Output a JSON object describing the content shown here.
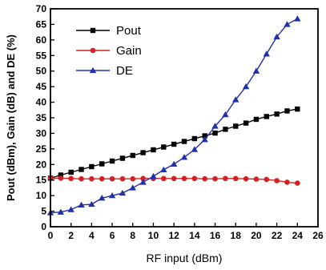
{
  "chart_data": {
    "type": "line",
    "title": "",
    "xlabel": "RF input (dBm)",
    "ylabel": "Pout (dBm), Gain (dB) and DE (%)",
    "xlim": [
      0,
      26
    ],
    "ylim": [
      0,
      70
    ],
    "x_ticks": [
      0,
      2,
      4,
      6,
      8,
      10,
      12,
      14,
      16,
      18,
      20,
      22,
      24,
      26
    ],
    "y_ticks": [
      0,
      5,
      10,
      15,
      20,
      25,
      30,
      35,
      40,
      45,
      50,
      55,
      60,
      65,
      70
    ],
    "grid": false,
    "legend_position": "top-left",
    "x": [
      0,
      1,
      2,
      3,
      4,
      5,
      6,
      7,
      8,
      9,
      10,
      11,
      12,
      13,
      14,
      15,
      16,
      17,
      18,
      19,
      20,
      21,
      22,
      23,
      24
    ],
    "series": [
      {
        "name": "Pout",
        "color": "#000000",
        "marker": "square",
        "values": [
          15.6,
          16.6,
          17.5,
          18.4,
          19.3,
          20.2,
          21.1,
          22.0,
          22.9,
          23.8,
          24.7,
          25.6,
          26.5,
          27.4,
          28.3,
          29.2,
          30.1,
          31.3,
          32.3,
          33.3,
          34.5,
          35.4,
          36.2,
          37.2,
          37.8
        ]
      },
      {
        "name": "Gain",
        "color": "#d42020",
        "marker": "circle",
        "values": [
          15.6,
          15.6,
          15.5,
          15.4,
          15.4,
          15.4,
          15.4,
          15.4,
          15.4,
          15.5,
          15.5,
          15.5,
          15.5,
          15.5,
          15.5,
          15.4,
          15.4,
          15.5,
          15.5,
          15.4,
          15.3,
          15.2,
          14.8,
          14.3,
          14.0
        ]
      },
      {
        "name": "DE",
        "color": "#2030a8",
        "marker": "triangle",
        "values": [
          4.5,
          4.7,
          5.5,
          7.0,
          7.2,
          9.2,
          10.0,
          10.8,
          12.5,
          14.3,
          16.2,
          18.3,
          20.1,
          22.3,
          24.8,
          28.0,
          32.3,
          36.0,
          40.8,
          45.0,
          50.0,
          55.5,
          61.0,
          65.0,
          66.8
        ]
      }
    ]
  }
}
